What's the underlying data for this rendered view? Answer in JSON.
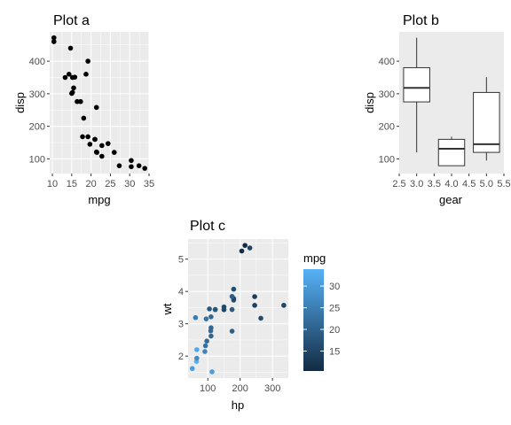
{
  "colors": {
    "panel_bg": "#ebebeb",
    "grid_major": "#ffffff",
    "point": "#000000",
    "tick_text": "#4d4d4d",
    "gradient_low": "#132b43",
    "gradient_high": "#56b1f7"
  },
  "chart_data": [
    {
      "id": "a",
      "type": "scatter",
      "title": "Plot a",
      "xlabel": "mpg",
      "ylabel": "disp",
      "xlim": [
        9.3,
        35.0
      ],
      "ylim": [
        55,
        490
      ],
      "xticks": [
        10,
        15,
        20,
        25,
        30,
        35
      ],
      "yticks": [
        100,
        200,
        300,
        400
      ],
      "grid": true,
      "points": [
        [
          10.4,
          472
        ],
        [
          10.4,
          460
        ],
        [
          13.3,
          350
        ],
        [
          14.3,
          360
        ],
        [
          14.7,
          440
        ],
        [
          15.0,
          301
        ],
        [
          15.2,
          304
        ],
        [
          15.2,
          350
        ],
        [
          15.5,
          318
        ],
        [
          15.8,
          351
        ],
        [
          16.4,
          276
        ],
        [
          17.3,
          276
        ],
        [
          17.8,
          168
        ],
        [
          18.1,
          225
        ],
        [
          18.7,
          360
        ],
        [
          19.2,
          400
        ],
        [
          19.2,
          168
        ],
        [
          19.7,
          145
        ],
        [
          21.0,
          160
        ],
        [
          21.0,
          160
        ],
        [
          21.4,
          258
        ],
        [
          21.4,
          121
        ],
        [
          21.5,
          120
        ],
        [
          22.8,
          108
        ],
        [
          22.8,
          141
        ],
        [
          24.4,
          147
        ],
        [
          26.0,
          120
        ],
        [
          27.3,
          79
        ],
        [
          30.4,
          95
        ],
        [
          30.4,
          76
        ],
        [
          32.4,
          79
        ],
        [
          33.9,
          71
        ]
      ]
    },
    {
      "id": "b",
      "type": "box",
      "title": "Plot b",
      "xlabel": "gear",
      "ylabel": "disp",
      "xlim": [
        2.5,
        5.5
      ],
      "ylim": [
        55,
        490
      ],
      "xticks": [
        2.5,
        3.0,
        3.5,
        4.0,
        4.5,
        5.0,
        5.5
      ],
      "xtick_labels": [
        "2.5",
        "3.0",
        "3.5",
        "4.0",
        "4.5",
        "5.0",
        "5.5"
      ],
      "yticks": [
        100,
        200,
        300,
        400
      ],
      "grid": false,
      "boxes": [
        {
          "x": 3,
          "min": 120,
          "q1": 275,
          "median": 318,
          "q3": 380,
          "max": 472
        },
        {
          "x": 4,
          "min": 79,
          "q1": 79,
          "median": 131,
          "q3": 160,
          "max": 168
        },
        {
          "x": 5,
          "min": 95,
          "q1": 120,
          "median": 145,
          "q3": 304,
          "max": 351
        }
      ]
    },
    {
      "id": "c",
      "type": "scatter",
      "title": "Plot c",
      "xlabel": "hp",
      "ylabel": "wt",
      "xlim": [
        39,
        349
      ],
      "ylim": [
        1.32,
        5.62
      ],
      "xticks": [
        100,
        200,
        300
      ],
      "yticks": [
        2,
        3,
        4,
        5
      ],
      "grid": true,
      "color_by": "mpg",
      "legend": {
        "title": "mpg",
        "ticks": [
          15,
          20,
          25,
          30
        ],
        "range": [
          10.4,
          33.9
        ],
        "position": "right"
      },
      "points": [
        [
          110,
          2.62,
          21.0
        ],
        [
          110,
          2.875,
          21.0
        ],
        [
          93,
          2.32,
          22.8
        ],
        [
          110,
          3.215,
          21.4
        ],
        [
          175,
          3.44,
          18.7
        ],
        [
          105,
          3.46,
          18.1
        ],
        [
          245,
          3.57,
          14.3
        ],
        [
          62,
          3.19,
          24.4
        ],
        [
          95,
          3.15,
          22.8
        ],
        [
          123,
          3.44,
          19.2
        ],
        [
          123,
          3.44,
          17.8
        ],
        [
          180,
          4.07,
          16.4
        ],
        [
          180,
          3.73,
          17.3
        ],
        [
          180,
          3.78,
          15.2
        ],
        [
          205,
          5.25,
          10.4
        ],
        [
          215,
          5.424,
          10.4
        ],
        [
          230,
          5.345,
          14.7
        ],
        [
          66,
          2.2,
          32.4
        ],
        [
          52,
          1.615,
          30.4
        ],
        [
          65,
          1.835,
          33.9
        ],
        [
          97,
          2.465,
          21.5
        ],
        [
          150,
          3.52,
          15.5
        ],
        [
          150,
          3.435,
          15.2
        ],
        [
          245,
          3.84,
          13.3
        ],
        [
          175,
          3.845,
          19.2
        ],
        [
          66,
          1.935,
          27.3
        ],
        [
          91,
          2.14,
          26.0
        ],
        [
          113,
          1.513,
          30.4
        ],
        [
          264,
          3.17,
          15.8
        ],
        [
          175,
          2.77,
          19.7
        ],
        [
          335,
          3.57,
          15.0
        ],
        [
          109,
          2.78,
          21.4
        ]
      ]
    }
  ]
}
